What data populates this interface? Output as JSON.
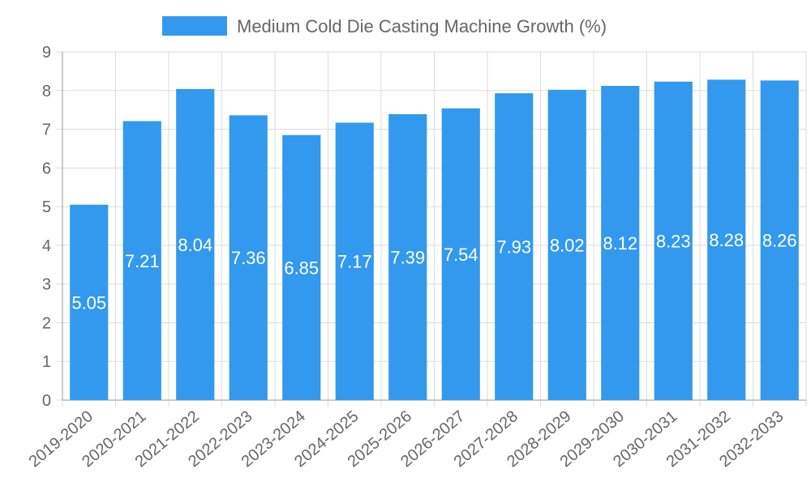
{
  "chart_data": {
    "type": "bar",
    "categories": [
      "2019-2020",
      "2020-2021",
      "2021-2022",
      "2022-2023",
      "2023-2024",
      "2024-2025",
      "2025-2026",
      "2026-2027",
      "2027-2028",
      "2028-2029",
      "2029-2030",
      "2030-2031",
      "2031-2032",
      "2032-2033"
    ],
    "series": [
      {
        "name": "Medium Cold Die Casting Machine Growth (%)",
        "values": [
          5.05,
          7.21,
          8.04,
          7.36,
          6.85,
          7.17,
          7.39,
          7.54,
          7.93,
          8.02,
          8.12,
          8.23,
          8.28,
          8.26
        ]
      }
    ],
    "ylim": [
      0,
      9
    ],
    "yticks": [
      "0",
      "1",
      "2",
      "3",
      "4",
      "5",
      "6",
      "7",
      "8",
      "9"
    ],
    "grid": true,
    "legend_position": "top-center",
    "colors": {
      "bar": "#3399ee",
      "grid": "#dddddd",
      "axis": "#999999",
      "text": "#666666",
      "data_label": "#ffffff"
    }
  }
}
